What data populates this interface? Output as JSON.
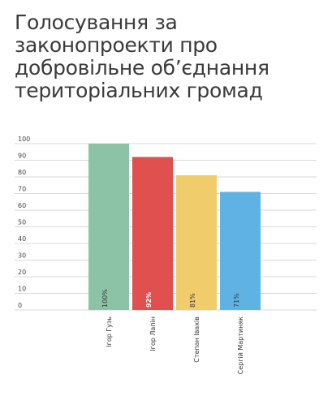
{
  "title": "Голосування за\nзаконопроекти про\nдобровільне об’єднання\nтериторіальних громад",
  "chart_data": {
    "type": "bar",
    "title": "Голосування за законопроекти про добровільне об’єднання територіальних громад",
    "categories": [
      "Ігор Гузь",
      "Ігор Лапін",
      "Степан Івахів",
      "Сергій Мартиняк"
    ],
    "values": [
      100,
      92,
      81,
      71
    ],
    "value_labels": [
      "100%",
      "92%",
      "81%",
      "71%"
    ],
    "colors": [
      "#8cc3a6",
      "#e0504f",
      "#f0cc6a",
      "#5eb3e4"
    ],
    "value_label_colors": [
      "#333333",
      "#ffffff",
      "#333333",
      "#333333"
    ],
    "yticks": [
      0,
      10,
      20,
      30,
      40,
      50,
      60,
      70,
      80,
      90,
      100
    ],
    "ylim": [
      0,
      100
    ],
    "grid": true,
    "xlabel": "",
    "ylabel": ""
  }
}
